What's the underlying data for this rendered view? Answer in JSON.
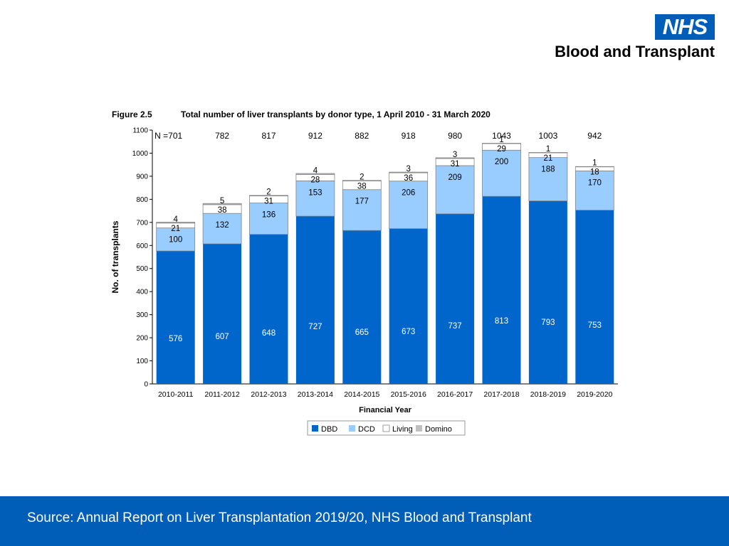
{
  "header": {
    "logo_text": "NHS",
    "org_name": "Blood and Transplant"
  },
  "figure": {
    "label": "Figure 2.5",
    "title": "Total number of liver transplants by donor type, 1 April 2010 - 31 March 2020"
  },
  "footer": {
    "source": "Source: Annual Report on Liver Transplantation 2019/20, NHS Blood and Transplant"
  },
  "chart_data": {
    "type": "bar",
    "stacked": true,
    "categories": [
      "2010-2011",
      "2011-2012",
      "2012-2013",
      "2013-2014",
      "2014-2015",
      "2015-2016",
      "2016-2017",
      "2017-2018",
      "2018-2019",
      "2019-2020"
    ],
    "series": [
      {
        "name": "DBD",
        "color": "#0066cc",
        "values": [
          576,
          607,
          648,
          727,
          665,
          673,
          737,
          813,
          793,
          753
        ]
      },
      {
        "name": "DCD",
        "color": "#99ccff",
        "values": [
          100,
          132,
          136,
          153,
          177,
          206,
          209,
          200,
          188,
          170
        ]
      },
      {
        "name": "Living",
        "color": "#ffffff",
        "values": [
          21,
          38,
          31,
          28,
          38,
          36,
          31,
          29,
          21,
          18
        ]
      },
      {
        "name": "Domino",
        "color": "#bfbfbf",
        "values": [
          4,
          5,
          2,
          4,
          2,
          3,
          3,
          1,
          1,
          1
        ]
      }
    ],
    "totals_prefix": "N =",
    "totals": [
      701,
      782,
      817,
      912,
      882,
      918,
      980,
      1043,
      1003,
      942
    ],
    "xlabel": "Financial Year",
    "ylabel": "No. of transplants",
    "ylim": [
      0,
      1100
    ],
    "yticks": [
      0,
      100,
      200,
      300,
      400,
      500,
      600,
      700,
      800,
      900,
      1000,
      1100
    ],
    "legend_position": "bottom"
  }
}
